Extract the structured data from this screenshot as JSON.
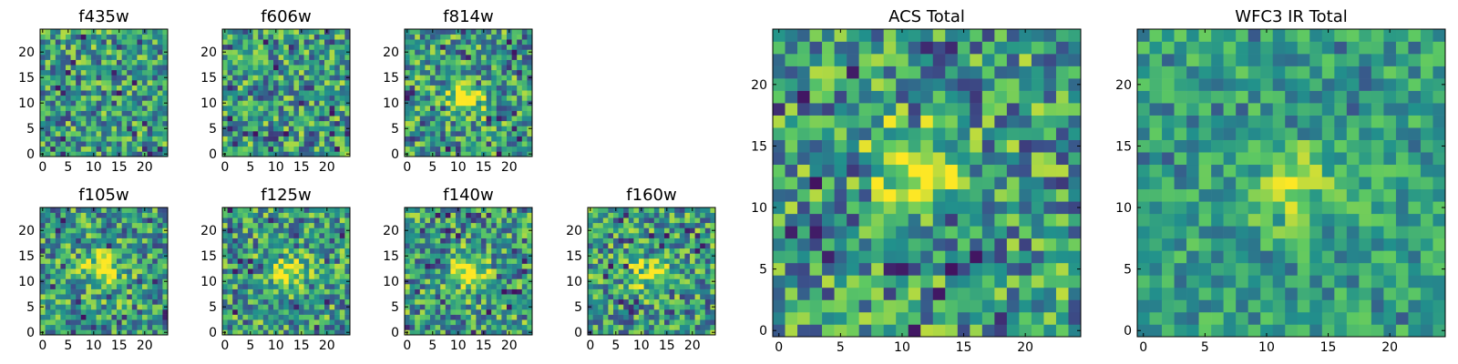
{
  "figure": {
    "colormap": [
      "#440154",
      "#3b528b",
      "#21918c",
      "#5ec962",
      "#fde725"
    ]
  },
  "chart_data": [
    {
      "type": "heatmap",
      "title": "f435w",
      "grid": [
        25,
        25
      ],
      "xlim": [
        -0.5,
        24.5
      ],
      "ylim": [
        -0.5,
        24.5
      ],
      "xticks": [
        0,
        5,
        10,
        15,
        20
      ],
      "yticks": [
        0,
        5,
        10,
        15,
        20
      ],
      "center": null,
      "cmap": "viridis",
      "grid_lines": false
    },
    {
      "type": "heatmap",
      "title": "f606w",
      "grid": [
        25,
        25
      ],
      "xlim": [
        -0.5,
        24.5
      ],
      "ylim": [
        -0.5,
        24.5
      ],
      "xticks": [
        0,
        5,
        10,
        15,
        20
      ],
      "yticks": [
        0,
        5,
        10,
        15,
        20
      ],
      "center": null,
      "cmap": "viridis",
      "grid_lines": false
    },
    {
      "type": "heatmap",
      "title": "f814w",
      "grid": [
        25,
        25
      ],
      "xlim": [
        -0.5,
        24.5
      ],
      "ylim": [
        -0.5,
        24.5
      ],
      "xticks": [
        0,
        5,
        10,
        15,
        20
      ],
      "yticks": [
        0,
        5,
        10,
        15,
        20
      ],
      "center": [
        12,
        11
      ],
      "cmap": "viridis",
      "grid_lines": false
    },
    {
      "type": "heatmap",
      "title": "f105w",
      "grid": [
        25,
        25
      ],
      "xlim": [
        -0.5,
        24.5
      ],
      "ylim": [
        -0.5,
        24.5
      ],
      "xticks": [
        0,
        5,
        10,
        15,
        20
      ],
      "yticks": [
        0,
        5,
        10,
        15,
        20
      ],
      "center": [
        12,
        12
      ],
      "cmap": "viridis",
      "grid_lines": false
    },
    {
      "type": "heatmap",
      "title": "f125w",
      "grid": [
        25,
        25
      ],
      "xlim": [
        -0.5,
        24.5
      ],
      "ylim": [
        -0.5,
        24.5
      ],
      "xticks": [
        0,
        5,
        10,
        15,
        20
      ],
      "yticks": [
        0,
        5,
        10,
        15,
        20
      ],
      "center": [
        12,
        12
      ],
      "cmap": "viridis",
      "grid_lines": false
    },
    {
      "type": "heatmap",
      "title": "f140w",
      "grid": [
        25,
        25
      ],
      "xlim": [
        -0.5,
        24.5
      ],
      "ylim": [
        -0.5,
        24.5
      ],
      "xticks": [
        0,
        5,
        10,
        15,
        20
      ],
      "yticks": [
        0,
        5,
        10,
        15,
        20
      ],
      "center": [
        12,
        12
      ],
      "cmap": "viridis",
      "grid_lines": false
    },
    {
      "type": "heatmap",
      "title": "f160w",
      "grid": [
        25,
        25
      ],
      "xlim": [
        -0.5,
        24.5
      ],
      "ylim": [
        -0.5,
        24.5
      ],
      "xticks": [
        0,
        5,
        10,
        15,
        20
      ],
      "yticks": [
        0,
        5,
        10,
        15,
        20
      ],
      "center": [
        12,
        12
      ],
      "cmap": "viridis",
      "grid_lines": false
    },
    {
      "type": "heatmap",
      "title": "ACS Total",
      "grid": [
        25,
        25
      ],
      "xlim": [
        -0.5,
        24.5
      ],
      "ylim": [
        -0.5,
        24.5
      ],
      "xticks": [
        0,
        5,
        10,
        15,
        20
      ],
      "yticks": [
        0,
        5,
        10,
        15,
        20
      ],
      "center": [
        11,
        13
      ],
      "cmap": "viridis",
      "grid_lines": false
    },
    {
      "type": "heatmap",
      "title": "WFC3 IR Total",
      "grid": [
        25,
        25
      ],
      "xlim": [
        -0.5,
        24.5
      ],
      "ylim": [
        -0.5,
        24.5
      ],
      "xticks": [
        0,
        5,
        10,
        15,
        20
      ],
      "yticks": [
        0,
        5,
        10,
        15,
        20
      ],
      "center": [
        12,
        12
      ],
      "cmap": "viridis",
      "grid_lines": false
    }
  ]
}
